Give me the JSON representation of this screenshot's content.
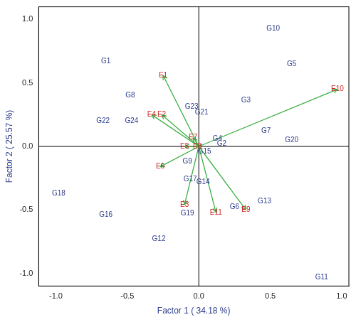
{
  "chart_data": {
    "type": "biplot",
    "x_label": "Factor 1 ( 34.18 %)",
    "y_label": "Factor 2 ( 25.57 %)",
    "xlim": [
      -1.12,
      1.05
    ],
    "ylim": [
      -1.1,
      1.1
    ],
    "xticks": [
      {
        "value": -1,
        "label": "-1.0"
      },
      {
        "value": -0.5,
        "label": "-0.5"
      },
      {
        "value": 0,
        "label": "0.0"
      },
      {
        "value": 0.5,
        "label": "0.5"
      },
      {
        "value": 1,
        "label": "1.0"
      }
    ],
    "yticks": [
      {
        "value": -1,
        "label": "-1.0"
      },
      {
        "value": -0.5,
        "label": "-0.5"
      },
      {
        "value": 0,
        "label": "0.0"
      },
      {
        "value": 0.5,
        "label": "0.5"
      },
      {
        "value": 1,
        "label": "1.0"
      }
    ],
    "grid": false,
    "series": [
      {
        "color": "#2e3d8c",
        "marker": "text",
        "labels": [
          "G1",
          "G2",
          "G3",
          "G4",
          "G5",
          "G6",
          "G7",
          "G8",
          "G9",
          "G10",
          "G11",
          "G12",
          "G13",
          "G14",
          "G15",
          "G16",
          "G17",
          "G18",
          "G19",
          "G20",
          "G21",
          "G22",
          "G23",
          "G24"
        ],
        "x": [
          -0.65,
          0.16,
          0.33,
          0.13,
          0.65,
          0.25,
          0.47,
          -0.48,
          -0.08,
          0.52,
          0.86,
          -0.28,
          0.46,
          0.03,
          0.04,
          -0.65,
          -0.06,
          -0.98,
          -0.08,
          0.65,
          0.02,
          -0.67,
          -0.05,
          -0.47
        ],
        "y": [
          0.67,
          0.02,
          0.36,
          0.06,
          0.65,
          -0.48,
          0.12,
          0.4,
          -0.12,
          0.93,
          -1.03,
          -0.73,
          -0.43,
          -0.28,
          -0.04,
          -0.54,
          -0.26,
          -0.37,
          -0.53,
          0.05,
          0.27,
          0.2,
          0.31,
          0.2
        ]
      },
      {
        "color": "#cc2222",
        "marker": "arrow",
        "labels": [
          "E1",
          "E2",
          "E3",
          "E4",
          "E5",
          "E6",
          "E7",
          "E8",
          "E9",
          "E10",
          "E11"
        ],
        "x": [
          -0.25,
          -0.26,
          -0.1,
          -0.33,
          -0.1,
          -0.27,
          -0.04,
          -0.01,
          0.33,
          0.97,
          0.12
        ],
        "y": [
          0.56,
          0.25,
          -0.46,
          0.25,
          0.0,
          -0.16,
          0.07,
          0.0,
          -0.5,
          0.45,
          -0.52
        ]
      }
    ]
  }
}
